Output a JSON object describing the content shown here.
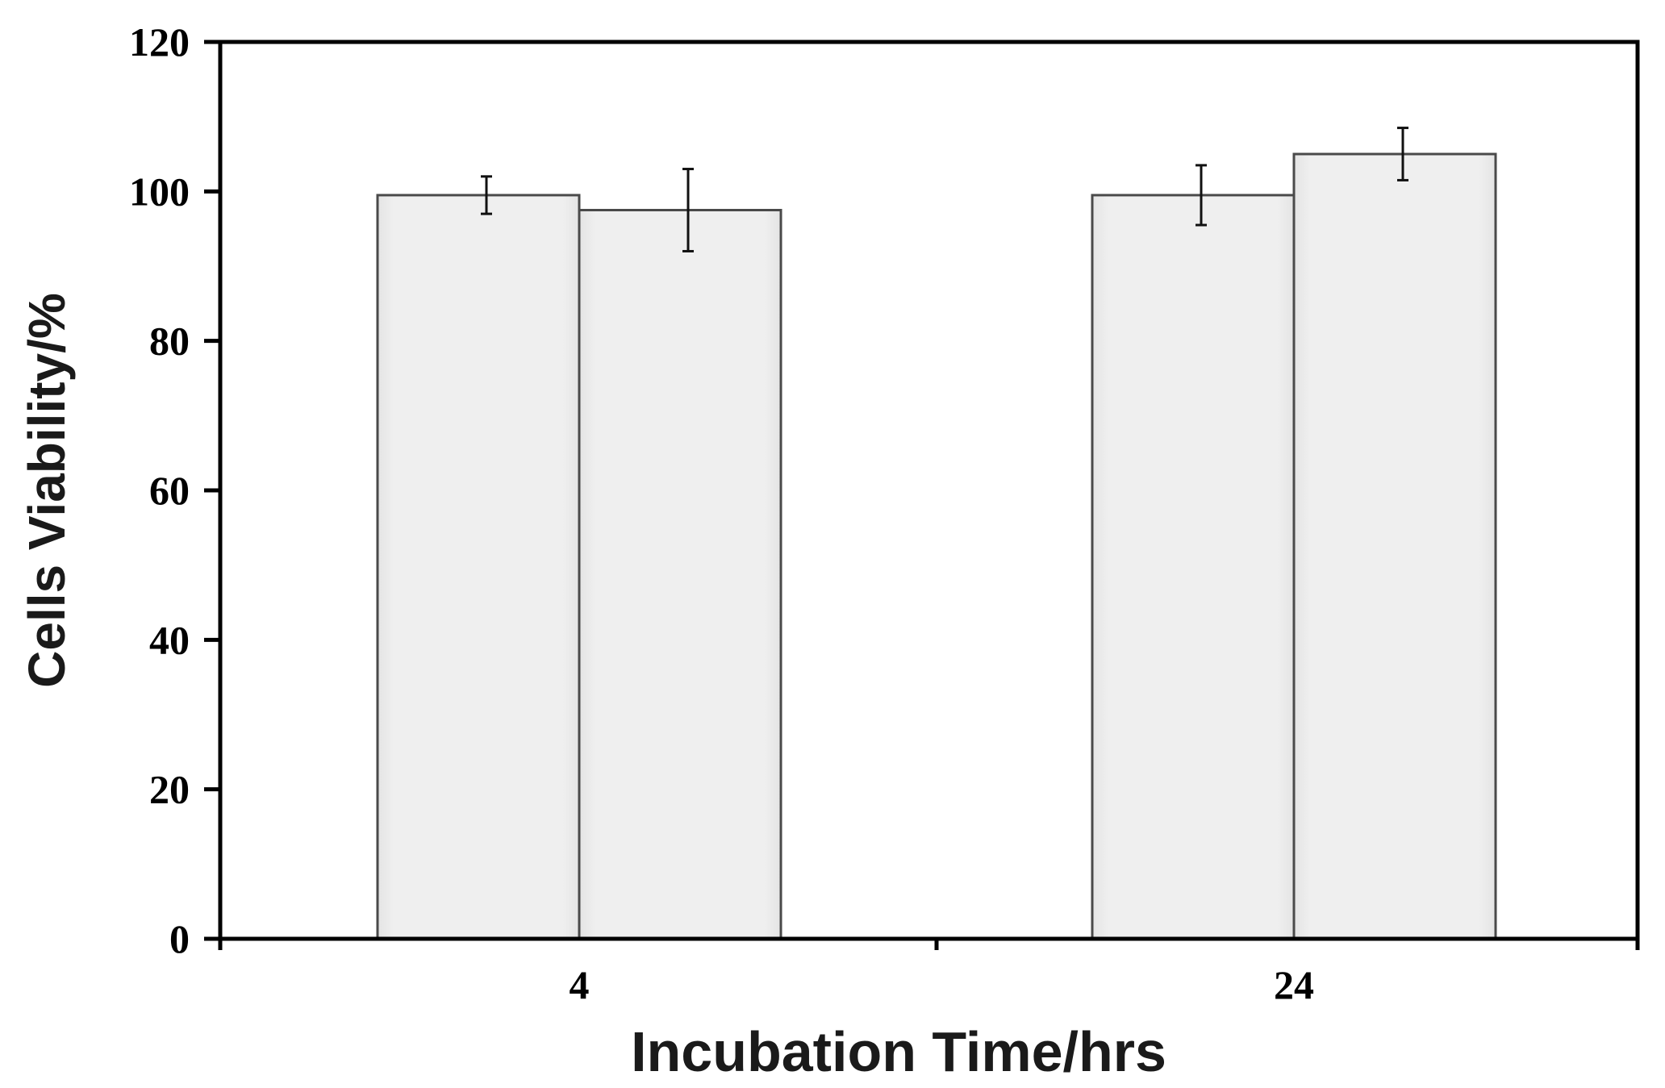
{
  "chart_data": {
    "type": "bar",
    "title": "",
    "xlabel": "Incubation Time/hrs",
    "ylabel": "Cells Viability/%",
    "categories": [
      "4",
      "24"
    ],
    "series": [
      {
        "values": [
          99.5,
          99.5
        ],
        "errors": [
          2.5,
          4.0
        ]
      },
      {
        "values": [
          97.5,
          105.0
        ],
        "errors": [
          5.5,
          3.5
        ]
      }
    ],
    "ylim": [
      0,
      120
    ],
    "yticks": [
      0,
      20,
      40,
      60,
      80,
      100,
      120
    ],
    "grid": false,
    "legend": "none",
    "bar_color": "#ededed",
    "edge_color": "#4a4a4a"
  }
}
